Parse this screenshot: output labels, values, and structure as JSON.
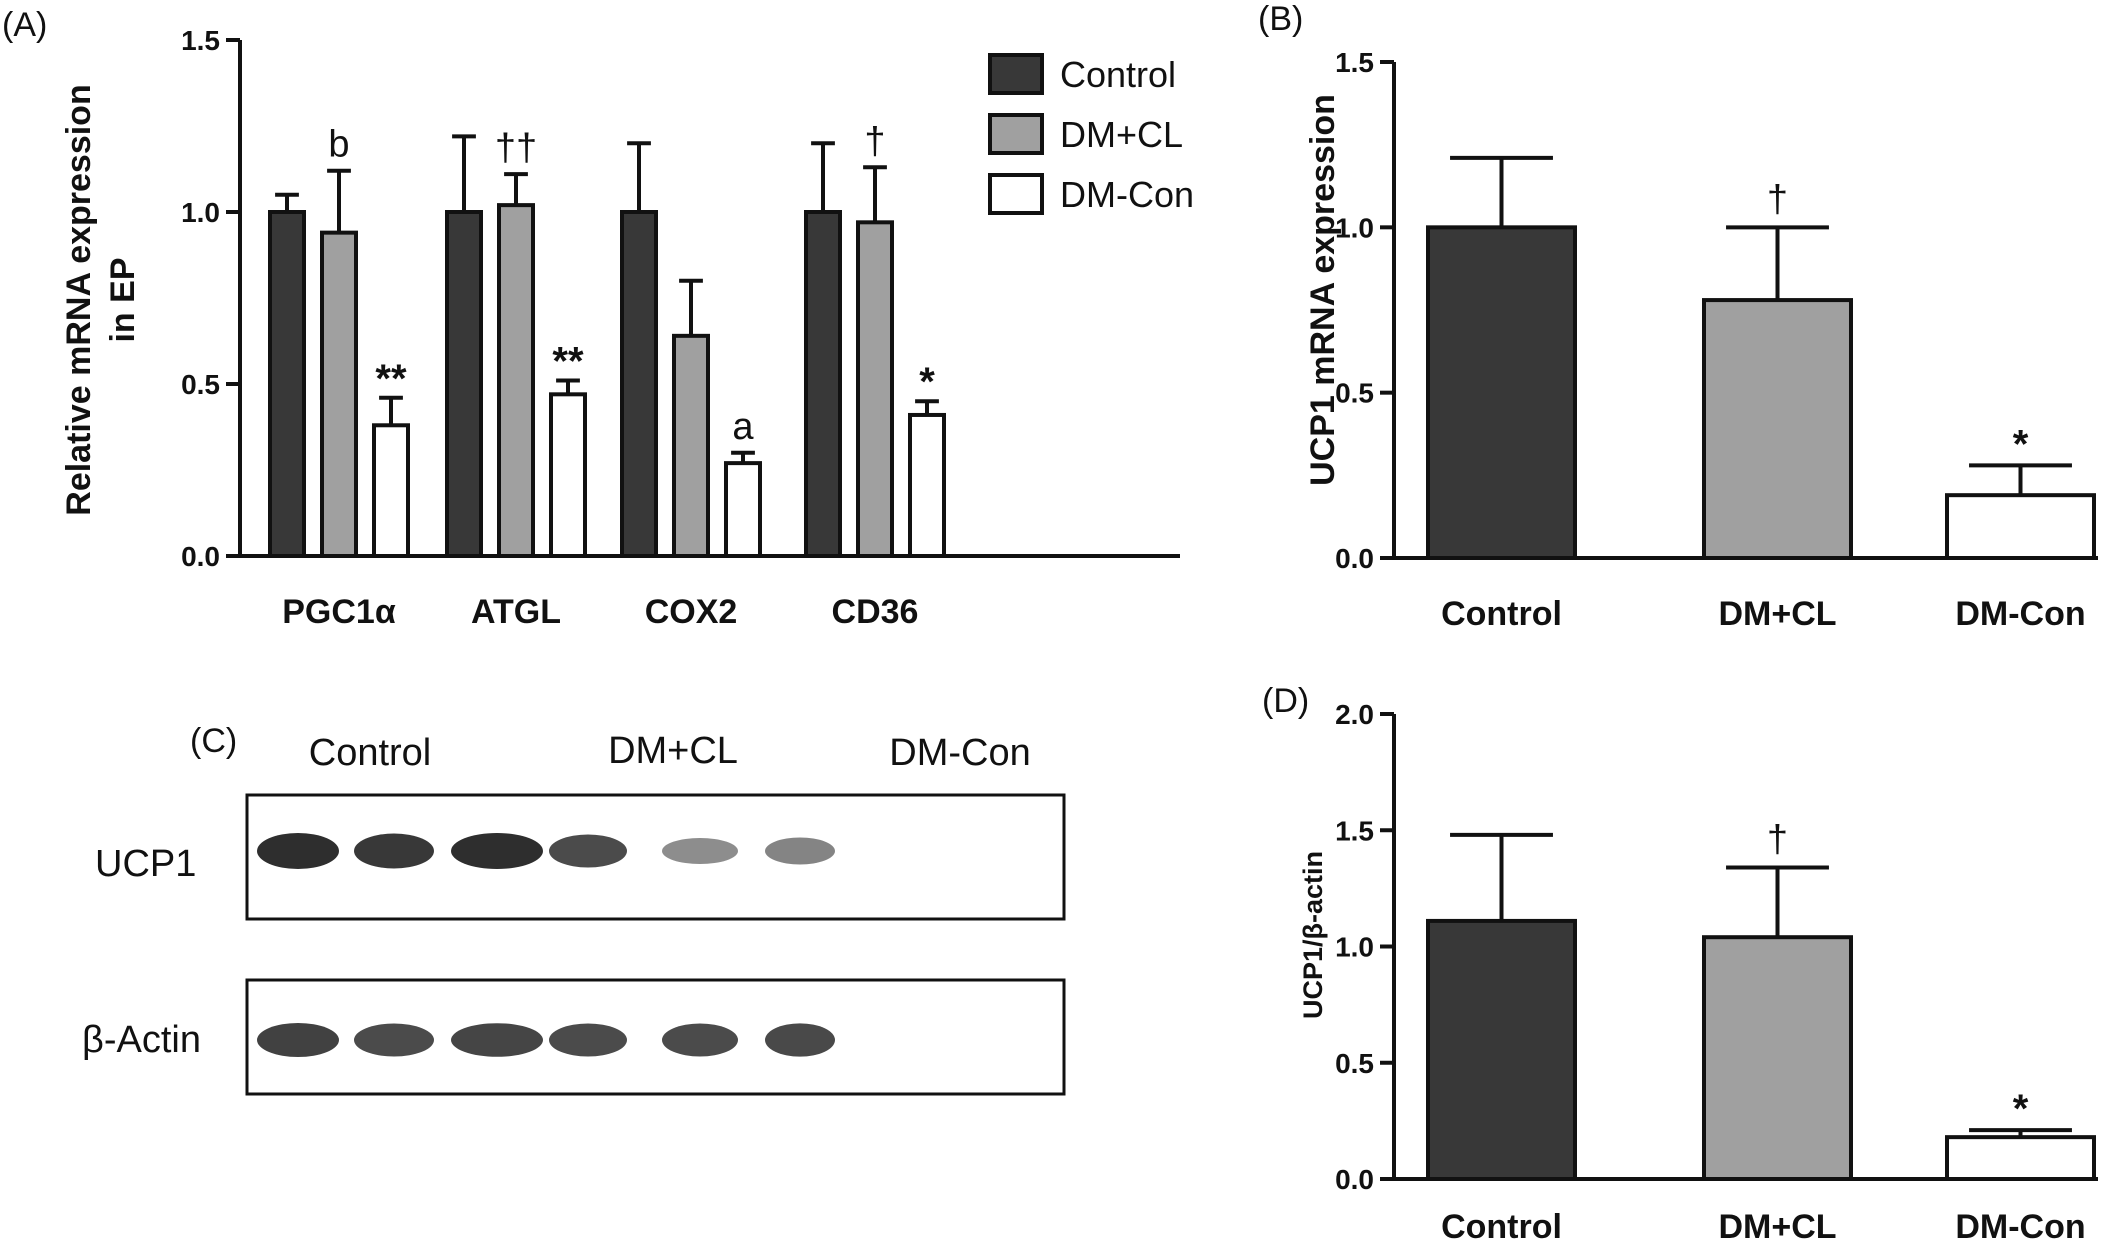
{
  "colors": {
    "control": "#383838",
    "dm_cl": "#a0a0a0",
    "dm_con": "#ffffff",
    "stroke": "#111111"
  },
  "legend": [
    "Control",
    "DM+CL",
    "DM-Con"
  ],
  "chart_data": [
    {
      "panel": "(A)",
      "type": "bar",
      "ylabel_line1": "Relative mRNA expression",
      "ylabel_line2": "in EP",
      "ylim": [
        0,
        1.5
      ],
      "yticks": [
        "0.0",
        "0.5",
        "1.0",
        "1.5"
      ],
      "categories": [
        "PGC1α",
        "ATGL",
        "COX2",
        "CD36"
      ],
      "series": [
        {
          "name": "Control",
          "values": [
            1.0,
            1.0,
            1.0,
            1.0
          ],
          "errors": [
            0.05,
            0.22,
            0.2,
            0.2
          ]
        },
        {
          "name": "DM+CL",
          "values": [
            0.94,
            1.02,
            0.64,
            0.97
          ],
          "errors": [
            0.18,
            0.09,
            0.16,
            0.16
          ]
        },
        {
          "name": "DM-Con",
          "values": [
            0.38,
            0.47,
            0.27,
            0.41
          ],
          "errors": [
            0.08,
            0.04,
            0.03,
            0.04
          ]
        }
      ],
      "annotations": [
        {
          "category": "PGC1α",
          "series": "DM+CL",
          "text": "b"
        },
        {
          "category": "PGC1α",
          "series": "DM-Con",
          "text": "**"
        },
        {
          "category": "ATGL",
          "series": "DM+CL",
          "text": "††"
        },
        {
          "category": "ATGL",
          "series": "DM-Con",
          "text": "**"
        },
        {
          "category": "COX2",
          "series": "DM-Con",
          "text": "a"
        },
        {
          "category": "CD36",
          "series": "DM+CL",
          "text": "†"
        },
        {
          "category": "CD36",
          "series": "DM-Con",
          "text": "*"
        }
      ]
    },
    {
      "panel": "(B)",
      "type": "bar",
      "ylabel": "UCP1 mRNA expression",
      "ylim": [
        0,
        1.5
      ],
      "yticks": [
        "0.0",
        "0.5",
        "1.0",
        "1.5"
      ],
      "categories": [
        "Control",
        "DM+CL",
        "DM-Con"
      ],
      "values": [
        1.0,
        0.78,
        0.19
      ],
      "errors": [
        0.21,
        0.22,
        0.09
      ],
      "annotations": [
        "",
        "†",
        "*"
      ]
    },
    {
      "panel": "(D)",
      "type": "bar",
      "ylabel": "UCP1/β-actin",
      "ylim": [
        0,
        2.0
      ],
      "yticks": [
        "0.0",
        "0.5",
        "1.0",
        "1.5",
        "2.0"
      ],
      "categories": [
        "Control",
        "DM+CL",
        "DM-Con"
      ],
      "values": [
        1.11,
        1.04,
        0.18
      ],
      "errors": [
        0.37,
        0.3,
        0.03
      ],
      "annotations": [
        "",
        "†",
        "*"
      ]
    }
  ],
  "western_blot": {
    "panel": "(C)",
    "groups": [
      "Control",
      "DM+CL",
      "DM-Con"
    ],
    "rows": [
      {
        "label": "UCP1",
        "intensities": [
          1.0,
          0.95,
          1.0,
          0.85,
          0.5,
          0.55
        ]
      },
      {
        "label": "β-Actin",
        "intensities": [
          0.9,
          0.85,
          0.88,
          0.85,
          0.85,
          0.86
        ]
      }
    ]
  }
}
